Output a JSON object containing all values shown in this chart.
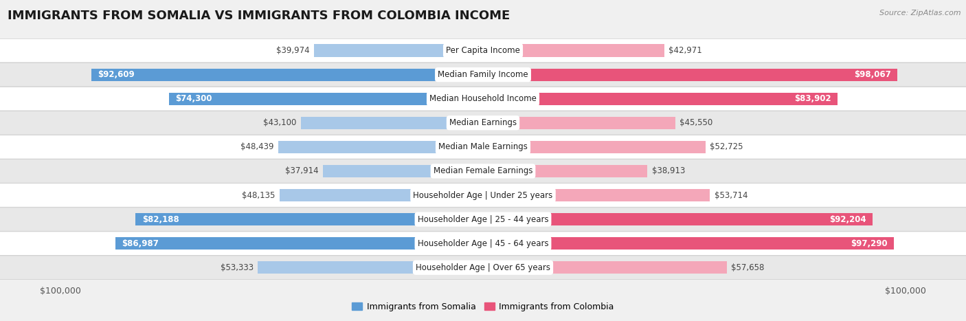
{
  "title": "IMMIGRANTS FROM SOMALIA VS IMMIGRANTS FROM COLOMBIA INCOME",
  "source": "Source: ZipAtlas.com",
  "categories": [
    "Per Capita Income",
    "Median Family Income",
    "Median Household Income",
    "Median Earnings",
    "Median Male Earnings",
    "Median Female Earnings",
    "Householder Age | Under 25 years",
    "Householder Age | 25 - 44 years",
    "Householder Age | 45 - 64 years",
    "Householder Age | Over 65 years"
  ],
  "somalia_values": [
    39974,
    92609,
    74300,
    43100,
    48439,
    37914,
    48135,
    82188,
    86987,
    53333
  ],
  "colombia_values": [
    42971,
    98067,
    83902,
    45550,
    52725,
    38913,
    53714,
    92204,
    97290,
    57658
  ],
  "somalia_labels": [
    "$39,974",
    "$92,609",
    "$74,300",
    "$43,100",
    "$48,439",
    "$37,914",
    "$48,135",
    "$82,188",
    "$86,987",
    "$53,333"
  ],
  "colombia_labels": [
    "$42,971",
    "$98,067",
    "$83,902",
    "$45,550",
    "$52,725",
    "$38,913",
    "$53,714",
    "$92,204",
    "$97,290",
    "$57,658"
  ],
  "somalia_color_light": "#a8c8e8",
  "somalia_color_dark": "#5b9bd5",
  "colombia_color_light": "#f4a7b9",
  "colombia_color_dark": "#e8547a",
  "somalia_inside_threshold": 60000,
  "colombia_inside_threshold": 60000,
  "max_value": 100000,
  "background_color": "#f0f0f0",
  "row_bg_odd": "#ffffff",
  "row_bg_even": "#e8e8e8",
  "legend_somalia": "Immigrants from Somalia",
  "legend_colombia": "Immigrants from Colombia",
  "title_fontsize": 13,
  "label_fontsize": 8.5,
  "category_fontsize": 8.5,
  "axis_label_fontsize": 9
}
